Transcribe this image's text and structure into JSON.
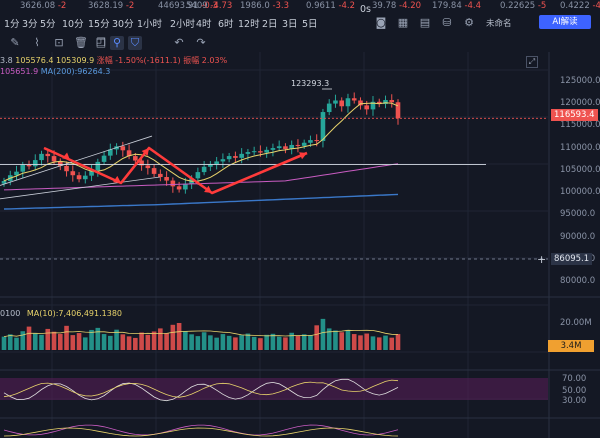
{
  "ticker": [
    {
      "value": "3626.08",
      "change": "-2"
    },
    {
      "value": "3628.19",
      "change": "-2"
    },
    {
      "value": "44693.91",
      "change": "-0.3"
    },
    {
      "value": "5409",
      "change": "-4.73"
    },
    {
      "value": "1986.0",
      "change": "-3.3"
    },
    {
      "value": "0.9611",
      "change": "-4.2"
    },
    {
      "value": "39.78",
      "change": "-4.20"
    },
    {
      "value": "179.84",
      "change": "-4.4"
    },
    {
      "value": "0.22625",
      "change": "-5"
    },
    {
      "value": "0.4222",
      "change": "-4.4"
    }
  ],
  "timeframes": [
    "1分",
    "3分",
    "5分",
    "10分",
    "15分",
    "30分",
    "1小时",
    "2小时",
    "4时",
    "6时",
    "12时",
    "2日",
    "3日",
    "5日"
  ],
  "right_controls": {
    "seconds_label": "0s",
    "layout_name": "未命名",
    "ai_button": "AI解读"
  },
  "toolbar_icons": [
    "pencil-icon",
    "brush-icon",
    "ruler-icon",
    "trash-icon",
    "copy-icon",
    "camera-icon",
    "magnet-icon",
    "filter-icon",
    "undo-icon",
    "redo-icon"
  ],
  "indicator_row1": {
    "prefix": "3.8",
    "vals": "105576.4  105309.9",
    "change": "涨幅 -1.50%(-1611.1)",
    "amp": "振幅 2.03%"
  },
  "indicator_row2": {
    "ma_short": "105651.9",
    "ma_long": "MA(200):96264.3"
  },
  "price_axis": [
    "125000.0",
    "120000.0",
    "115000.0",
    "110000.0",
    "105000.0",
    "100000.0",
    "95000.0",
    "90000.0",
    "85000.0",
    "80000.0"
  ],
  "high_label": "123293.3",
  "current_price": "116593.4",
  "crosshair_price": "86095.1",
  "volume": {
    "left_label": "0100",
    "ma": "MA(10):7,406,491.1380",
    "axis_top": "20.00M",
    "current": "3.4M"
  },
  "rsi_axis": [
    "70.00",
    "50.00",
    "30.00"
  ],
  "colors": {
    "up": "#26a69a",
    "down": "#ef5350",
    "accent": "#3d63ff",
    "ma_yellow": "#e8d36b",
    "ma_pink": "#c95cc2",
    "ma_blue": "#3a78c9",
    "orange": "#f0a030"
  },
  "chart_data": {
    "type": "candlestick",
    "ylim": [
      78000,
      127000
    ],
    "closes": [
      102500,
      103800,
      104600,
      106100,
      105800,
      107200,
      108600,
      108100,
      106900,
      105900,
      104700,
      103800,
      102900,
      103700,
      104900,
      106800,
      108200,
      109600,
      110300,
      109400,
      108100,
      107100,
      106000,
      105400,
      104100,
      103400,
      102600,
      101300,
      100600,
      101900,
      103100,
      104500,
      105700,
      106300,
      106900,
      107400,
      108100,
      107700,
      108600,
      109000,
      109200,
      108900,
      109500,
      109900,
      110300,
      109700,
      110600,
      110400,
      111100,
      111700,
      111500,
      118000,
      119900,
      120600,
      119300,
      121100,
      120600,
      119500,
      118600,
      120300,
      119800,
      120700,
      120200,
      116600
    ],
    "volumes": [
      5.2,
      6.1,
      4.8,
      7.3,
      9.1,
      6.4,
      5.9,
      8.2,
      7.1,
      6.3,
      9.4,
      5.8,
      6.6,
      4.9,
      7.8,
      8.6,
      6.2,
      5.5,
      7.9,
      6.1,
      5.3,
      4.7,
      6.8,
      5.9,
      7.2,
      8.4,
      6.6,
      9.8,
      10.5,
      7.3,
      6.1,
      5.4,
      6.9,
      5.7,
      4.8,
      6.2,
      5.5,
      4.9,
      5.8,
      6.4,
      5.1,
      4.6,
      5.9,
      6.3,
      5.2,
      4.9,
      6.7,
      5.5,
      6.1,
      5.8,
      9.6,
      12.1,
      8.4,
      7.6,
      6.9,
      7.8,
      6.2,
      5.7,
      6.4,
      5.3,
      4.9,
      5.6,
      4.8,
      6.2
    ]
  }
}
